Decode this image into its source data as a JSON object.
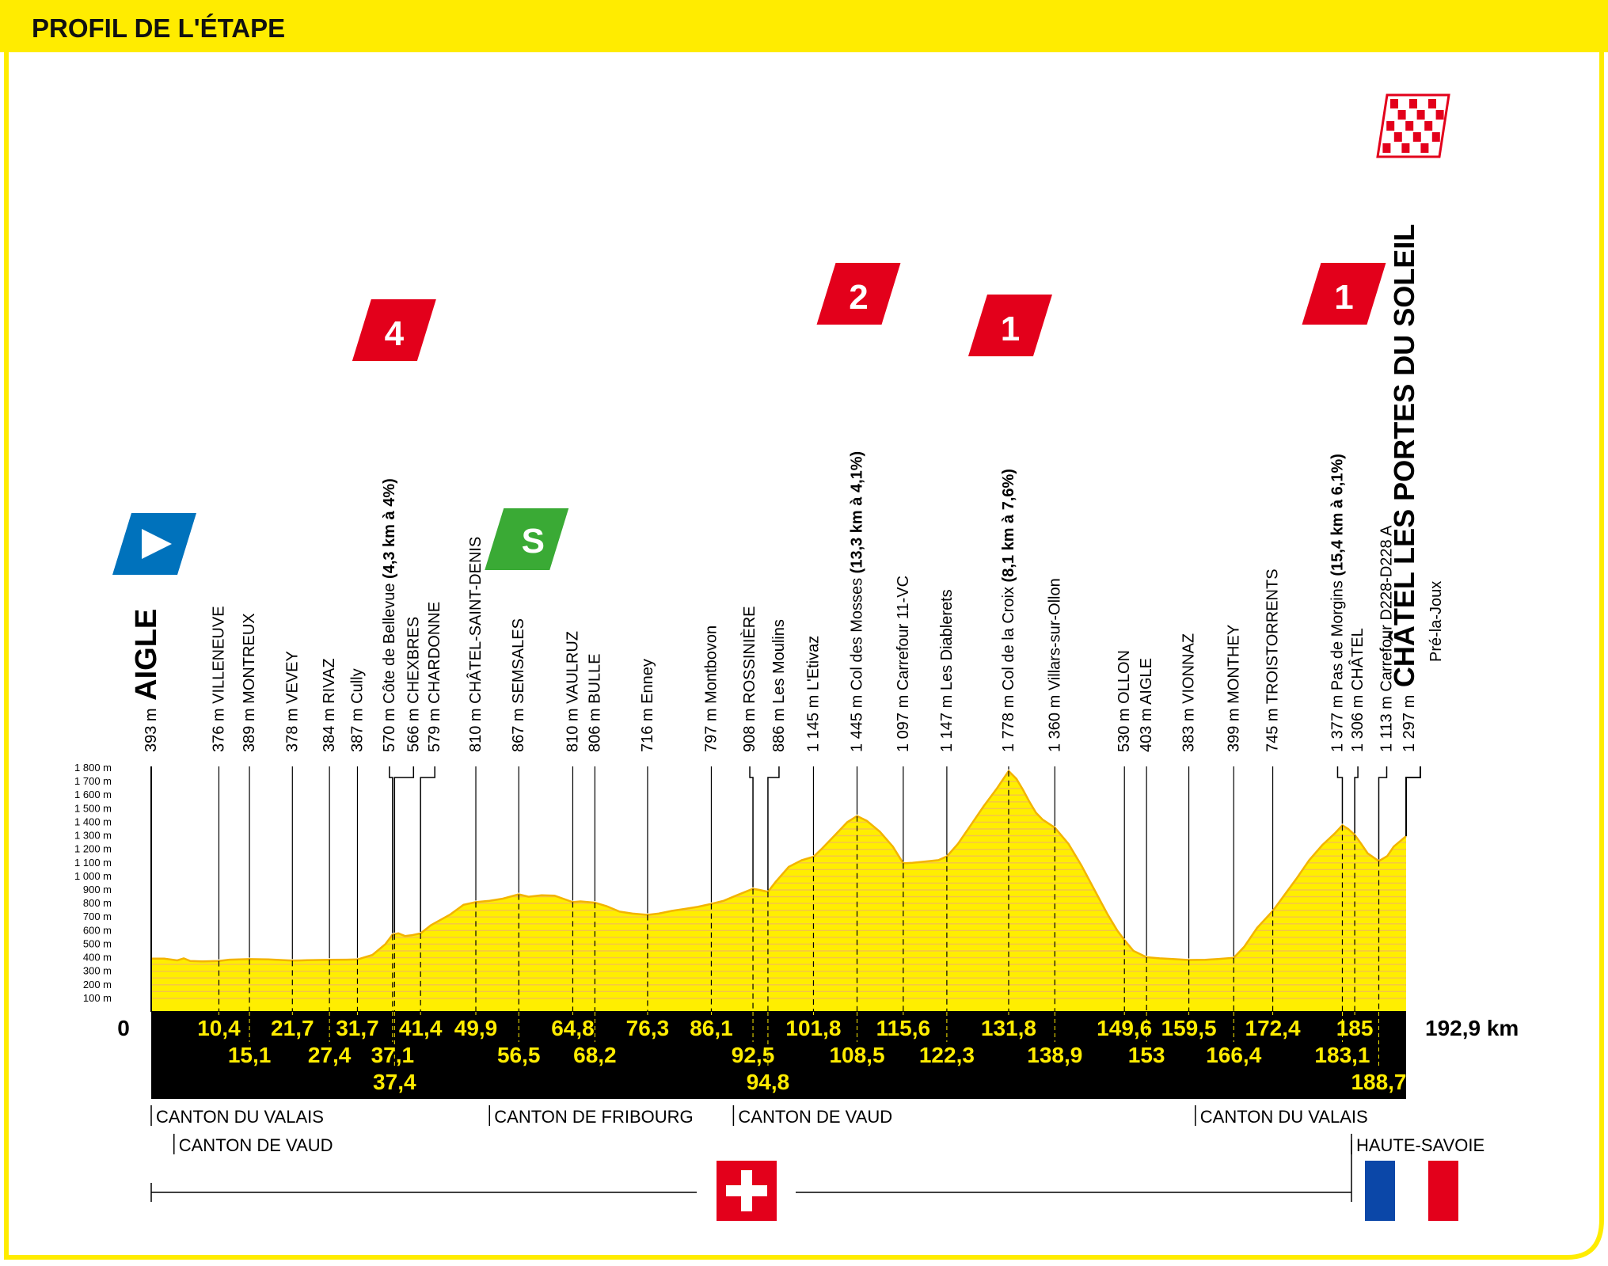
{
  "header": {
    "title": "PROFIL DE L'ÉTAPE"
  },
  "colors": {
    "frame": "#ffec00",
    "profile": "#ffee00",
    "profile_line": "#f3b400",
    "stripe": "#f5c24a",
    "climb_red": "#e3001b",
    "sprint_green": "#3aaa35",
    "start_blue": "#0072bc",
    "black": "#000000",
    "text_yellow": "#ffec00"
  },
  "chart_data": {
    "type": "area",
    "title": "",
    "xlabel": "",
    "ylabel": "",
    "x_unit": "km",
    "y_unit": "m",
    "xlim": [
      0,
      192.9
    ],
    "ylim": [
      0,
      1800
    ],
    "y_ticks": [
      "100 m",
      "200 m",
      "300 m",
      "400 m",
      "500 m",
      "600 m",
      "700 m",
      "800 m",
      "900 m",
      "1 000 m",
      "1 100 m",
      "1 200 m",
      "1 300 m",
      "1 400 m",
      "1 500 m",
      "1 600 m",
      "1 700 m",
      "1 800 m"
    ],
    "y_tick_values": [
      100,
      200,
      300,
      400,
      500,
      600,
      700,
      800,
      900,
      1000,
      1100,
      1200,
      1300,
      1400,
      1500,
      1600,
      1700,
      1800
    ],
    "start_label": "0",
    "total_label": "192,9 km",
    "profile": [
      [
        0,
        393
      ],
      [
        2,
        393
      ],
      [
        4,
        380
      ],
      [
        5,
        395
      ],
      [
        6,
        375
      ],
      [
        8,
        372
      ],
      [
        10.4,
        376
      ],
      [
        12,
        385
      ],
      [
        15.1,
        389
      ],
      [
        18,
        387
      ],
      [
        21.7,
        378
      ],
      [
        24,
        381
      ],
      [
        27.4,
        384
      ],
      [
        30,
        385
      ],
      [
        31.7,
        387
      ],
      [
        34,
        420
      ],
      [
        36,
        500
      ],
      [
        37.1,
        570
      ],
      [
        38,
        580
      ],
      [
        39,
        560
      ],
      [
        40,
        565
      ],
      [
        41.4,
        579
      ],
      [
        43,
        640
      ],
      [
        46,
        720
      ],
      [
        48,
        790
      ],
      [
        49.9,
        810
      ],
      [
        52,
        820
      ],
      [
        54,
        835
      ],
      [
        56.5,
        867
      ],
      [
        58,
        850
      ],
      [
        60,
        860
      ],
      [
        62,
        858
      ],
      [
        64.8,
        810
      ],
      [
        66,
        815
      ],
      [
        68.2,
        806
      ],
      [
        70,
        780
      ],
      [
        72,
        740
      ],
      [
        74,
        725
      ],
      [
        76.3,
        716
      ],
      [
        78,
        725
      ],
      [
        80,
        745
      ],
      [
        82,
        760
      ],
      [
        84,
        775
      ],
      [
        86.1,
        797
      ],
      [
        88,
        820
      ],
      [
        90,
        860
      ],
      [
        92.5,
        908
      ],
      [
        93.5,
        900
      ],
      [
        94.8,
        886
      ],
      [
        96,
        960
      ],
      [
        98,
        1070
      ],
      [
        100,
        1120
      ],
      [
        101.8,
        1145
      ],
      [
        103,
        1200
      ],
      [
        105,
        1300
      ],
      [
        107,
        1400
      ],
      [
        108.5,
        1445
      ],
      [
        110,
        1410
      ],
      [
        112,
        1330
      ],
      [
        114,
        1220
      ],
      [
        115.6,
        1097
      ],
      [
        117,
        1100
      ],
      [
        119,
        1110
      ],
      [
        121,
        1120
      ],
      [
        122.3,
        1147
      ],
      [
        124,
        1240
      ],
      [
        126,
        1380
      ],
      [
        128,
        1520
      ],
      [
        130,
        1650
      ],
      [
        131.8,
        1778
      ],
      [
        133,
        1720
      ],
      [
        134,
        1640
      ],
      [
        135,
        1550
      ],
      [
        136,
        1470
      ],
      [
        137,
        1420
      ],
      [
        138.9,
        1360
      ],
      [
        141,
        1240
      ],
      [
        143,
        1080
      ],
      [
        145,
        900
      ],
      [
        147,
        720
      ],
      [
        148.5,
        600
      ],
      [
        149.6,
        530
      ],
      [
        151,
        450
      ],
      [
        153,
        403
      ],
      [
        155,
        395
      ],
      [
        157,
        390
      ],
      [
        159.5,
        383
      ],
      [
        162,
        384
      ],
      [
        164,
        390
      ],
      [
        166.4,
        399
      ],
      [
        168,
        480
      ],
      [
        170,
        620
      ],
      [
        172.4,
        745
      ],
      [
        174,
        850
      ],
      [
        176,
        980
      ],
      [
        178,
        1120
      ],
      [
        180,
        1230
      ],
      [
        182,
        1320
      ],
      [
        183.1,
        1377
      ],
      [
        184,
        1350
      ],
      [
        185,
        1306
      ],
      [
        186,
        1240
      ],
      [
        187,
        1170
      ],
      [
        188.7,
        1113
      ],
      [
        190,
        1150
      ],
      [
        191,
        1220
      ],
      [
        192.9,
        1297
      ]
    ],
    "km_labels_upper": [
      "10,4",
      "21,7",
      "31,7",
      "41,4",
      "49,9",
      "64,8",
      "76,3",
      "86,1",
      "101,8",
      "115,6",
      "131,8",
      "149,6",
      "159,5",
      "172,4",
      "185"
    ],
    "km_upper_values": [
      10.4,
      21.7,
      31.7,
      41.4,
      49.9,
      64.8,
      76.3,
      86.1,
      101.8,
      115.6,
      131.8,
      149.6,
      159.5,
      172.4,
      185
    ],
    "km_labels_middle": [
      "15,1",
      "27,4",
      "37,1",
      "56,5",
      "68,2",
      "92,5",
      "108,5",
      "122,3",
      "138,9",
      "153",
      "166,4",
      "183,1"
    ],
    "km_middle_values": [
      15.1,
      27.4,
      37.1,
      56.5,
      68.2,
      92.5,
      108.5,
      122.3,
      138.9,
      153,
      166.4,
      183.1
    ],
    "km_labels_lower": [
      "37,4",
      "94,8",
      "188,7"
    ],
    "km_lower_values": [
      37.4,
      94.8,
      188.7
    ],
    "waypoints": [
      {
        "km": 0,
        "alt": "393 m",
        "name": "AIGLE",
        "type": "start"
      },
      {
        "km": 10.4,
        "alt": "376 m",
        "name": "VILLENEUVE"
      },
      {
        "km": 15.1,
        "alt": "389 m",
        "name": "MONTREUX"
      },
      {
        "km": 21.7,
        "alt": "378 m",
        "name": "VEVEY"
      },
      {
        "km": 27.4,
        "alt": "384 m",
        "name": "RIVAZ"
      },
      {
        "km": 31.7,
        "alt": "387 m",
        "name": "Cully"
      },
      {
        "km": 37.1,
        "alt": "570 m",
        "name": "Côte de Bellevue",
        "bold": "(4,3 km à 4%)"
      },
      {
        "km": 37.4,
        "alt": "566 m",
        "name": "CHEXBRES"
      },
      {
        "km": 41.4,
        "alt": "579 m",
        "name": "CHARDONNE"
      },
      {
        "km": 49.9,
        "alt": "810 m",
        "name": "CHÂTEL-SAINT-DENIS"
      },
      {
        "km": 56.5,
        "alt": "867 m",
        "name": "SEMSALES"
      },
      {
        "km": 64.8,
        "alt": "810 m",
        "name": "VAULRUZ"
      },
      {
        "km": 68.2,
        "alt": "806 m",
        "name": "BULLE"
      },
      {
        "km": 76.3,
        "alt": "716 m",
        "name": "Enney"
      },
      {
        "km": 86.1,
        "alt": "797 m",
        "name": "Montbovon"
      },
      {
        "km": 92.5,
        "alt": "908 m",
        "name": "ROSSINIÈRE"
      },
      {
        "km": 94.8,
        "alt": "886 m",
        "name": "Les Moulins"
      },
      {
        "km": 101.8,
        "alt": "1 145 m",
        "name": "L'Etivaz"
      },
      {
        "km": 108.5,
        "alt": "1 445 m",
        "name": "Col des Mosses",
        "bold": "(13,3 km à 4,1%)"
      },
      {
        "km": 115.6,
        "alt": "1 097 m",
        "name": "Carrefour 11-VC"
      },
      {
        "km": 122.3,
        "alt": "1 147 m",
        "name": "Les Diablerets"
      },
      {
        "km": 131.8,
        "alt": "1 778 m",
        "name": "Col de la Croix",
        "bold": "(8,1 km à 7,6%)"
      },
      {
        "km": 138.9,
        "alt": "1 360 m",
        "name": "Villars-sur-Ollon"
      },
      {
        "km": 149.6,
        "alt": "530 m",
        "name": "OLLON"
      },
      {
        "km": 153,
        "alt": "403 m",
        "name": "AIGLE"
      },
      {
        "km": 159.5,
        "alt": "383 m",
        "name": "VIONNAZ"
      },
      {
        "km": 166.4,
        "alt": "399 m",
        "name": "MONTHEY"
      },
      {
        "km": 172.4,
        "alt": "745 m",
        "name": "TROISTORRENTS"
      },
      {
        "km": 183.1,
        "alt": "1 377 m",
        "name": "Pas de Morgins",
        "bold": "(15,4 km à 6,1%)"
      },
      {
        "km": 185,
        "alt": "1 306 m",
        "name": "CHÂTEL"
      },
      {
        "km": 188.7,
        "alt": "1 113 m",
        "name": "Carrefour D228-D228 A"
      },
      {
        "km": 192.9,
        "alt": "1 297 m",
        "name": "CHÂTEL LES PORTES DU SOLEIL",
        "sub": "Pré-la-Joux",
        "type": "finish"
      }
    ],
    "climbs": [
      {
        "km": 37.1,
        "category": "4"
      },
      {
        "km": 108.5,
        "category": "2"
      },
      {
        "km": 131.8,
        "category": "1"
      },
      {
        "km": 183.1,
        "category": "1"
      }
    ],
    "sprint": {
      "km": 56.5,
      "label": "S"
    },
    "regions_row1": [
      {
        "km": 0,
        "label": "CANTON DU VALAIS"
      },
      {
        "km": 52,
        "label": "CANTON DE FRIBOURG"
      },
      {
        "km": 89.5,
        "label": "CANTON DE VAUD"
      },
      {
        "km": 160.5,
        "label": "CANTON DU VALAIS"
      }
    ],
    "regions_row2": [
      {
        "km": 3.5,
        "label": "CANTON DE VAUD"
      },
      {
        "km": 184.5,
        "label": "HAUTE-SAVOIE"
      }
    ],
    "countries": [
      {
        "name": "switzerland-flag",
        "from_km": 0,
        "to_km": 184.5
      },
      {
        "name": "france-flag",
        "from_km": 184.5,
        "to_km": 192.9
      }
    ]
  }
}
